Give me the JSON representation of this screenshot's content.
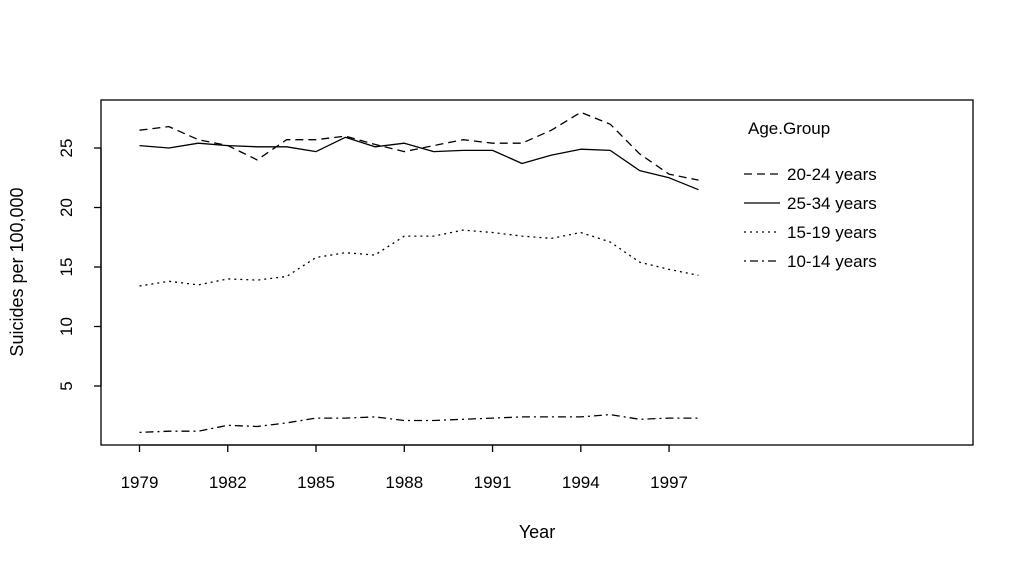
{
  "chart_data": {
    "type": "line",
    "title": "",
    "xlabel": "Year",
    "ylabel": "Suicides per 100,000",
    "x": [
      1979,
      1980,
      1981,
      1982,
      1983,
      1984,
      1985,
      1986,
      1987,
      1988,
      1989,
      1990,
      1991,
      1992,
      1993,
      1994,
      1995,
      1996,
      1997,
      1998
    ],
    "x_ticks": [
      "1979",
      "1982",
      "1985",
      "1988",
      "1991",
      "1994",
      "1997"
    ],
    "y_ticks": [
      "5",
      "10",
      "15",
      "20",
      "25"
    ],
    "legend_title": "Age.Group",
    "legend_position": "top-right",
    "grid": false,
    "series": [
      {
        "name": "20-24 years",
        "style": "dashed",
        "values": [
          26.5,
          26.8,
          25.7,
          25.2,
          24.0,
          25.7,
          25.7,
          26.0,
          25.3,
          24.7,
          25.2,
          25.7,
          25.4,
          25.4,
          26.5,
          28.0,
          27.0,
          24.5,
          22.8,
          22.3
        ]
      },
      {
        "name": "25-34 years",
        "style": "solid",
        "values": [
          25.2,
          25.0,
          25.4,
          25.2,
          25.1,
          25.1,
          24.7,
          25.9,
          25.1,
          25.4,
          24.7,
          24.8,
          24.8,
          23.7,
          24.4,
          24.9,
          24.8,
          23.1,
          22.5,
          21.5
        ]
      },
      {
        "name": "15-19 years",
        "style": "dotted",
        "values": [
          13.4,
          13.8,
          13.5,
          14.0,
          13.9,
          14.2,
          15.8,
          16.2,
          16.0,
          17.6,
          17.6,
          18.1,
          17.9,
          17.6,
          17.4,
          17.9,
          17.1,
          15.4,
          14.8,
          14.3
        ]
      },
      {
        "name": "10-14 years",
        "style": "dotdash",
        "values": [
          1.1,
          1.2,
          1.2,
          1.7,
          1.6,
          1.9,
          2.3,
          2.3,
          2.4,
          2.1,
          2.1,
          2.2,
          2.3,
          2.4,
          2.4,
          2.4,
          2.6,
          2.2,
          2.3,
          2.3
        ]
      }
    ]
  }
}
